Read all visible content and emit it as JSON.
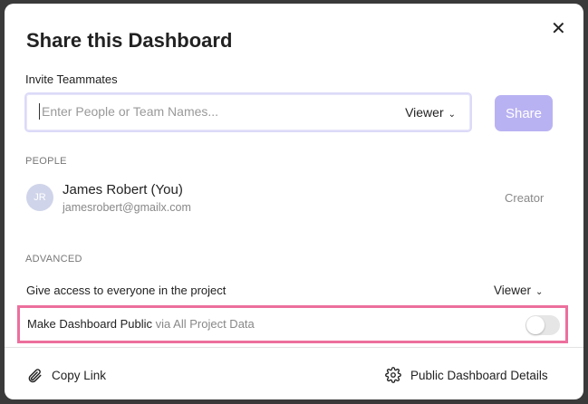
{
  "dialog": {
    "title": "Share this Dashboard",
    "close_icon": "close-icon",
    "invite": {
      "label": "Invite Teammates",
      "placeholder": "Enter People or Team Names...",
      "role": "Viewer",
      "share_label": "Share"
    },
    "people": {
      "section_label": "PEOPLE",
      "items": [
        {
          "initials": "JR",
          "name": "James Robert (You)",
          "email": "jamesrobert@gmailx.com",
          "role": "Creator"
        }
      ]
    },
    "advanced": {
      "section_label": "ADVANCED",
      "access_label": "Give access to everyone in the project",
      "access_role": "Viewer",
      "public_label": "Make Dashboard Public",
      "public_sublabel": "via All Project Data",
      "public_enabled": false,
      "highlight_color": "#ec6f9c"
    },
    "footer": {
      "copy_link": "Copy Link",
      "public_details": "Public Dashboard Details"
    },
    "colors": {
      "share_button": "#b9b2f2",
      "avatar": "#cfd4ea"
    }
  }
}
